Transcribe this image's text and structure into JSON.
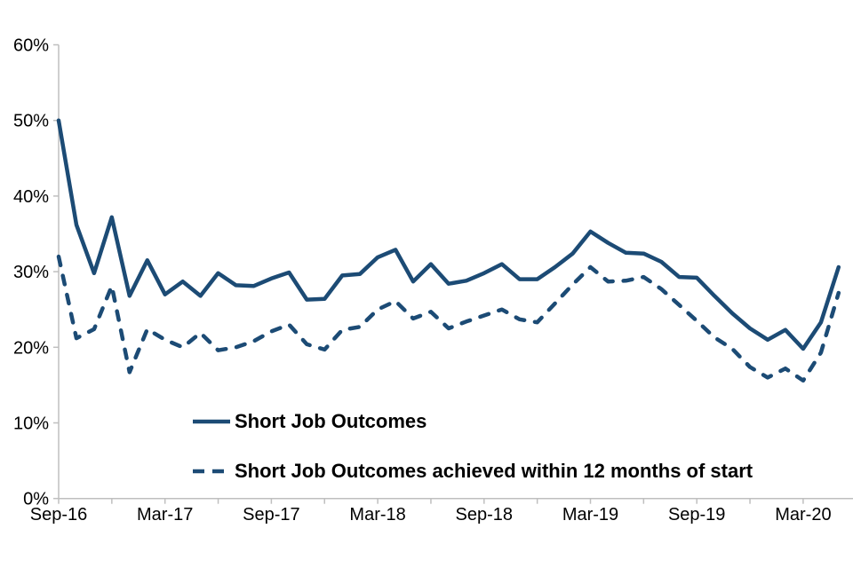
{
  "chart_data": {
    "type": "line",
    "title": "",
    "x": [
      "Sep-16",
      "Oct-16",
      "Nov-16",
      "Dec-16",
      "Jan-17",
      "Feb-17",
      "Mar-17",
      "Apr-17",
      "May-17",
      "Jun-17",
      "Jul-17",
      "Aug-17",
      "Sep-17",
      "Oct-17",
      "Nov-17",
      "Dec-17",
      "Jan-18",
      "Feb-18",
      "Mar-18",
      "Apr-18",
      "May-18",
      "Jun-18",
      "Jul-18",
      "Aug-18",
      "Sep-18",
      "Oct-18",
      "Nov-18",
      "Dec-18",
      "Jan-19",
      "Feb-19",
      "Mar-19",
      "Apr-19",
      "May-19",
      "Jun-19",
      "Jul-19",
      "Aug-19",
      "Sep-19",
      "Oct-19",
      "Nov-19",
      "Dec-19",
      "Jan-20",
      "Feb-20",
      "Mar-20",
      "Apr-20",
      "May-20"
    ],
    "x_tick_labels": [
      "Sep-16",
      "Mar-17",
      "Sep-17",
      "Mar-18",
      "Sep-18",
      "Mar-19",
      "Sep-19",
      "Mar-20"
    ],
    "y_ticks": [
      "0%",
      "10%",
      "20%",
      "30%",
      "40%",
      "50%",
      "60%"
    ],
    "ylim": [
      0,
      60
    ],
    "grid": false,
    "legend_position": "inside-bottom-left",
    "series": [
      {
        "name": "Short Job Outcomes",
        "style": "solid",
        "values": [
          50.0,
          36.2,
          29.8,
          37.2,
          26.8,
          31.5,
          27.0,
          28.7,
          26.8,
          29.8,
          28.2,
          28.1,
          29.1,
          29.9,
          26.3,
          26.4,
          29.5,
          29.7,
          31.9,
          32.9,
          28.7,
          31.0,
          28.4,
          28.8,
          29.8,
          31.0,
          29.0,
          29.0,
          30.6,
          32.4,
          35.3,
          33.8,
          32.5,
          32.4,
          31.3,
          29.3,
          29.2,
          26.8,
          24.5,
          22.5,
          21.0,
          22.3,
          19.8,
          23.3,
          30.6
        ]
      },
      {
        "name": "Short Job Outcomes achieved within 12 months of start",
        "style": "dashed",
        "values": [
          32.0,
          21.2,
          22.4,
          28.1,
          16.7,
          22.4,
          21.0,
          20.0,
          21.9,
          19.6,
          20.0,
          20.8,
          22.1,
          23.0,
          20.4,
          19.7,
          22.3,
          22.7,
          25.0,
          26.1,
          23.8,
          24.7,
          22.5,
          23.4,
          24.2,
          25.0,
          23.7,
          23.3,
          25.8,
          28.3,
          30.6,
          28.7,
          28.8,
          29.3,
          27.7,
          25.6,
          23.5,
          21.3,
          19.8,
          17.4,
          16.0,
          17.2,
          15.6,
          19.3,
          27.2
        ]
      }
    ],
    "colors": {
      "line": "#1C4B75",
      "axis": "#BFBFBF",
      "text": "#000000",
      "background": "#FFFFFF"
    }
  }
}
